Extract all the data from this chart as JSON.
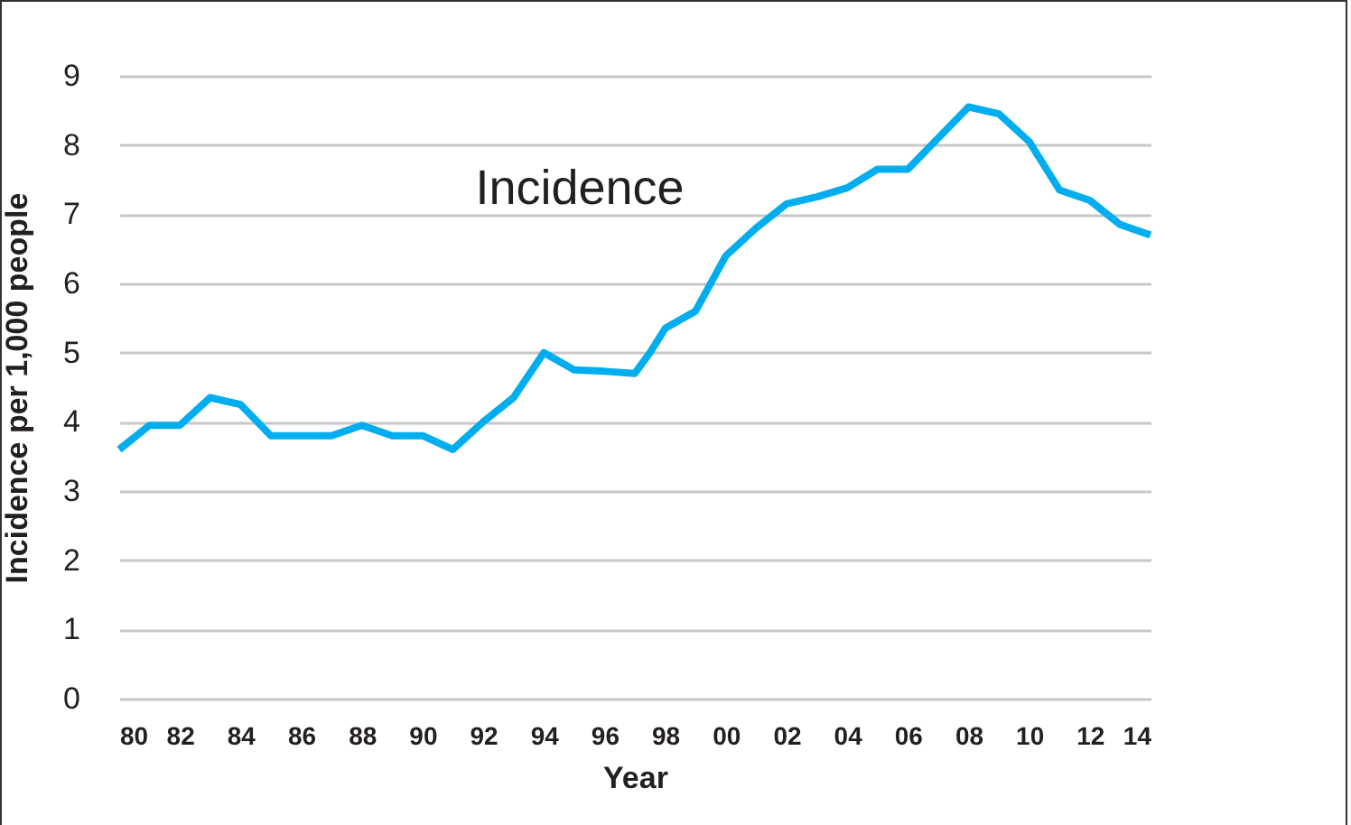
{
  "chart_data": {
    "type": "line",
    "xlabel": "Year",
    "ylabel": "Incidence per 1,000 people",
    "x": [
      1980,
      1981,
      1982,
      1983,
      1984,
      1985,
      1986,
      1987,
      1988,
      1989,
      1990,
      1991,
      1992,
      1993,
      1994,
      1995,
      1996,
      1997,
      1997.5,
      1998,
      1999,
      2000,
      2001,
      2002,
      2003,
      2004,
      2005,
      2006,
      2007,
      2008,
      2009,
      2010,
      2011,
      2012,
      2013,
      2014
    ],
    "series": [
      {
        "name": "Incidence",
        "color": "#00aeef",
        "values": [
          3.6,
          3.95,
          3.95,
          4.35,
          4.25,
          3.8,
          3.8,
          3.8,
          3.95,
          3.8,
          3.8,
          3.6,
          4.0,
          4.35,
          5.0,
          4.75,
          4.73,
          4.7,
          5.0,
          5.35,
          5.6,
          6.4,
          6.8,
          7.15,
          7.25,
          7.38,
          7.65,
          7.65,
          8.1,
          8.55,
          8.45,
          8.05,
          7.35,
          7.2,
          6.85,
          6.7
        ]
      }
    ],
    "xlim": [
      1980,
      2014
    ],
    "xticks": [
      {
        "value": 1980,
        "label": "80"
      },
      {
        "value": 1982,
        "label": "82"
      },
      {
        "value": 1984,
        "label": "84"
      },
      {
        "value": 1986,
        "label": "86"
      },
      {
        "value": 1988,
        "label": "88"
      },
      {
        "value": 1990,
        "label": "90"
      },
      {
        "value": 1992,
        "label": "92"
      },
      {
        "value": 1994,
        "label": "94"
      },
      {
        "value": 1996,
        "label": "96"
      },
      {
        "value": 1998,
        "label": "98"
      },
      {
        "value": 2000,
        "label": "00"
      },
      {
        "value": 2002,
        "label": "02"
      },
      {
        "value": 2004,
        "label": "04"
      },
      {
        "value": 2006,
        "label": "06"
      },
      {
        "value": 2008,
        "label": "08"
      },
      {
        "value": 2010,
        "label": "10"
      },
      {
        "value": 2012,
        "label": "12"
      },
      {
        "value": 2014,
        "label": "14"
      }
    ],
    "ylim": [
      0,
      9
    ],
    "yticks": [
      0,
      1,
      2,
      3,
      4,
      5,
      6,
      7,
      8,
      9
    ],
    "grid": "y",
    "legend": false,
    "marker": "none",
    "line_style": "solid"
  }
}
